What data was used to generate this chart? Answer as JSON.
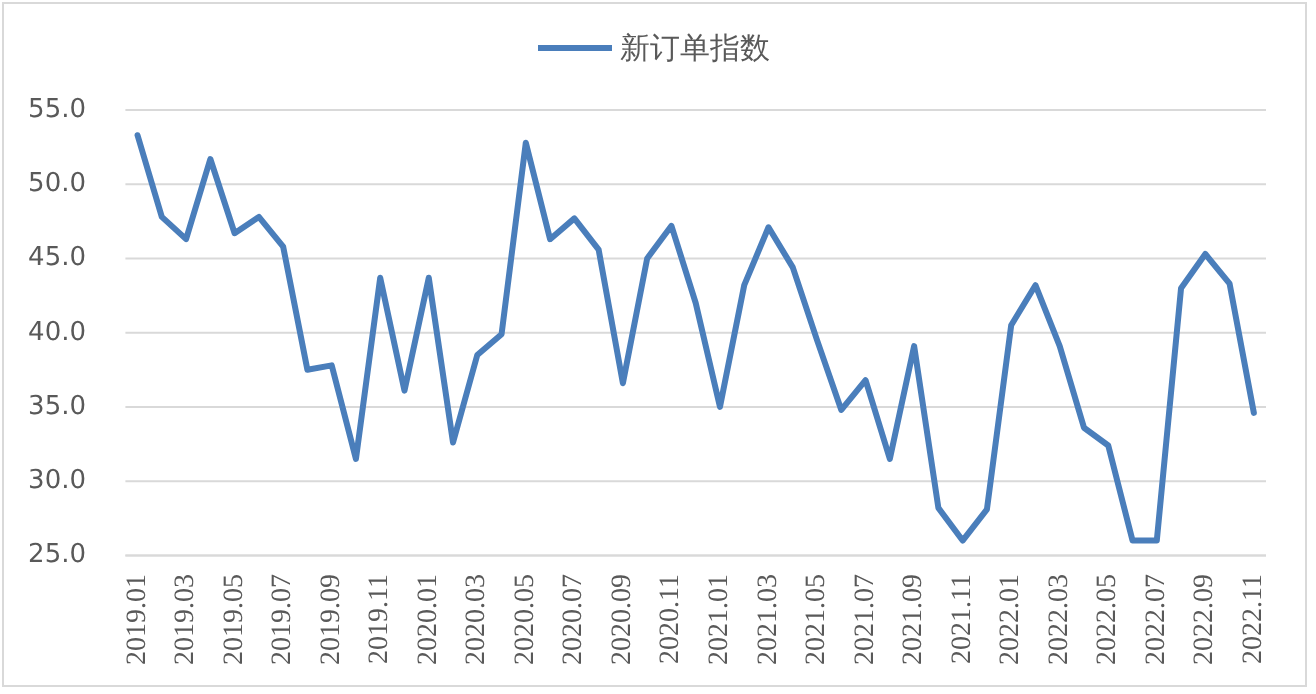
{
  "chart_data": {
    "type": "line",
    "categories": [
      "2019.01",
      null,
      "2019.03",
      null,
      "2019.05",
      null,
      "2019.07",
      null,
      "2019.09",
      null,
      "2019.11",
      null,
      "2020.01",
      null,
      "2020.03",
      null,
      "2020.05",
      null,
      "2020.07",
      null,
      "2020.09",
      null,
      "2020.11",
      null,
      "2021.01",
      null,
      "2021.03",
      null,
      "2021.05",
      null,
      "2021.07",
      null,
      "2021.09",
      null,
      "2021.11",
      null,
      "2022.01",
      null,
      "2022.03",
      null,
      "2022.05",
      null,
      "2022.07",
      null,
      "2022.09",
      null,
      "2022.11"
    ],
    "series": [
      {
        "name": "新订单指数",
        "color": "#4a7ebb",
        "values": [
          53.3,
          47.8,
          46.3,
          51.7,
          46.7,
          47.8,
          45.8,
          37.5,
          37.8,
          31.5,
          43.7,
          36.1,
          43.7,
          32.6,
          38.5,
          39.9,
          52.8,
          46.3,
          47.7,
          45.6,
          36.6,
          45.0,
          47.2,
          42.0,
          35.0,
          43.2,
          47.1,
          44.4,
          39.5,
          34.8,
          36.8,
          31.5,
          39.1,
          28.2,
          26.0,
          28.1,
          40.5,
          43.2,
          39.1,
          33.6,
          32.4,
          26.0,
          26.0,
          43.0,
          45.3,
          43.3,
          34.6
        ]
      }
    ],
    "ylim": [
      25,
      55
    ],
    "yticks": [
      {
        "value": 25,
        "label": "25.0"
      },
      {
        "value": 30,
        "label": "30.0"
      },
      {
        "value": 35,
        "label": "35.0"
      },
      {
        "value": 40,
        "label": "40.0"
      },
      {
        "value": 45,
        "label": "45.0"
      },
      {
        "value": 50,
        "label": "50.0"
      },
      {
        "value": 55,
        "label": "55.0"
      }
    ],
    "grid": "y",
    "legend": "top"
  }
}
